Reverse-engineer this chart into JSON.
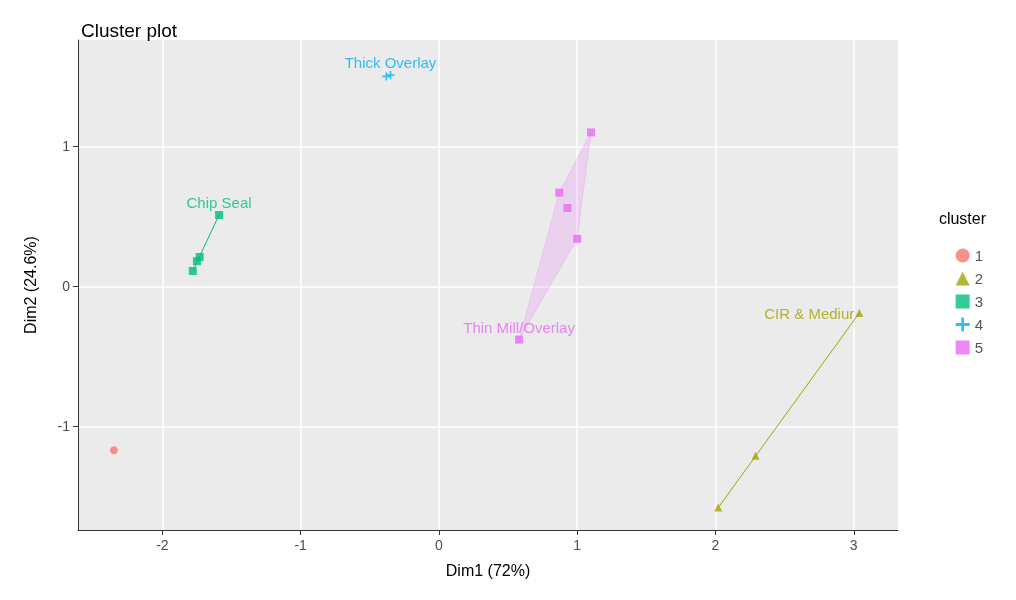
{
  "chart_data": {
    "type": "scatter",
    "title": "Cluster plot",
    "xlabel": "Dim1 (72%)",
    "ylabel": "Dim2 (24.6%)",
    "legend_title": "cluster",
    "legend": "right",
    "grid": true,
    "xlim": [
      -2.61,
      3.32
    ],
    "xticks": [
      -2,
      -1,
      0,
      1,
      2,
      3
    ],
    "ylim": [
      -1.74,
      1.76
    ],
    "yticks": [
      -1,
      0,
      1
    ],
    "series": [
      {
        "name": "1",
        "color": "#f8766d",
        "marker": "circle",
        "x": [
          -2.35
        ],
        "values": [
          -1.17
        ]
      },
      {
        "name": "2",
        "color": "#a3a500",
        "marker": "triangle",
        "x": [
          2.02,
          3.04,
          2.29
        ],
        "values": [
          -1.58,
          -0.19,
          -1.21
        ]
      },
      {
        "name": "3",
        "color": "#00bf7d",
        "marker": "square",
        "x": [
          -1.59,
          -1.78,
          -1.76,
          -1.73,
          -1.75
        ],
        "values": [
          0.51,
          0.11,
          null,
          0.21,
          0.18
        ]
      },
      {
        "name": "4",
        "color": "#00b0f6",
        "marker": "cross",
        "x": [
          -0.38,
          -0.35
        ],
        "values": [
          1.5,
          1.51
        ]
      },
      {
        "name": "5",
        "color": "#e76bf3",
        "marker": "square",
        "x": [
          1.1,
          0.87,
          1.0,
          0.58,
          0.93
        ],
        "values": [
          1.1,
          0.67,
          0.34,
          -0.38,
          0.56
        ]
      },
      {
        "type": "line",
        "color": "#a3a500",
        "marker": "none",
        "x": [
          2.02,
          3.04
        ],
        "values": [
          -1.58,
          -0.19
        ]
      },
      {
        "type": "line",
        "color": "#00bf7d",
        "marker": "none",
        "x": [
          -1.78,
          -1.59
        ],
        "values": [
          0.11,
          0.51
        ]
      }
    ],
    "annotations": [
      {
        "text": "Chip Seal",
        "x": -1.59,
        "y": 0.51
      },
      {
        "text": "Thin Mill/Overlay",
        "x": 0.58,
        "y": -0.38
      },
      {
        "text": "CIR & Mediur",
        "x": 3.04,
        "y": -0.19
      },
      {
        "text": "Thick Overlay",
        "x": -0.35,
        "y": 1.51
      }
    ]
  }
}
